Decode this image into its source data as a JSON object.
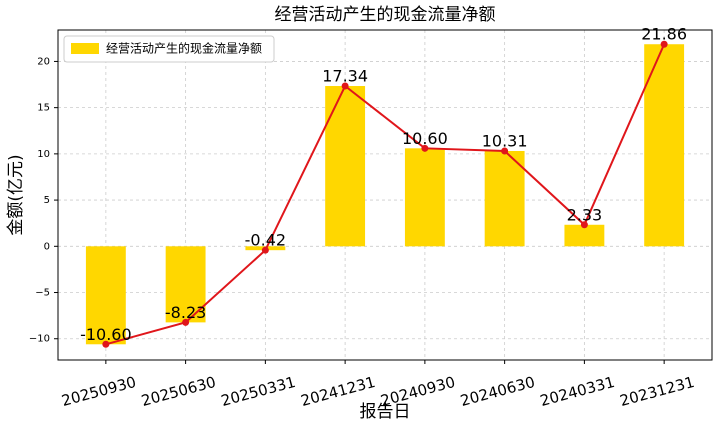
{
  "chart_data": {
    "type": "bar",
    "title": "经营活动产生的现金流量净额",
    "x_label": "报告日",
    "y_label": "金额(亿元)",
    "categories": [
      "20250930",
      "20250630",
      "20250331",
      "20241231",
      "20240930",
      "20240630",
      "20240331",
      "20231231"
    ],
    "series": [
      {
        "name": "经营活动产生的现金流量净额",
        "color": "#FFD700",
        "values": [
          -10.6,
          -8.23,
          -0.42,
          17.34,
          10.6,
          10.31,
          2.33,
          21.86
        ],
        "value_labels": [
          "-10.60",
          "-8.23",
          "-0.42",
          "17.34",
          "10.60",
          "10.31",
          "2.33",
          "21.86"
        ]
      }
    ],
    "line_color": "#e0161b",
    "ylim": [
      -12.3,
      23.4
    ],
    "yticks": [
      {
        "value": -10,
        "label": "−10"
      },
      {
        "value": -5,
        "label": "−5"
      },
      0,
      5,
      10,
      15,
      20
    ],
    "grid": true,
    "legend": "upper-left"
  }
}
